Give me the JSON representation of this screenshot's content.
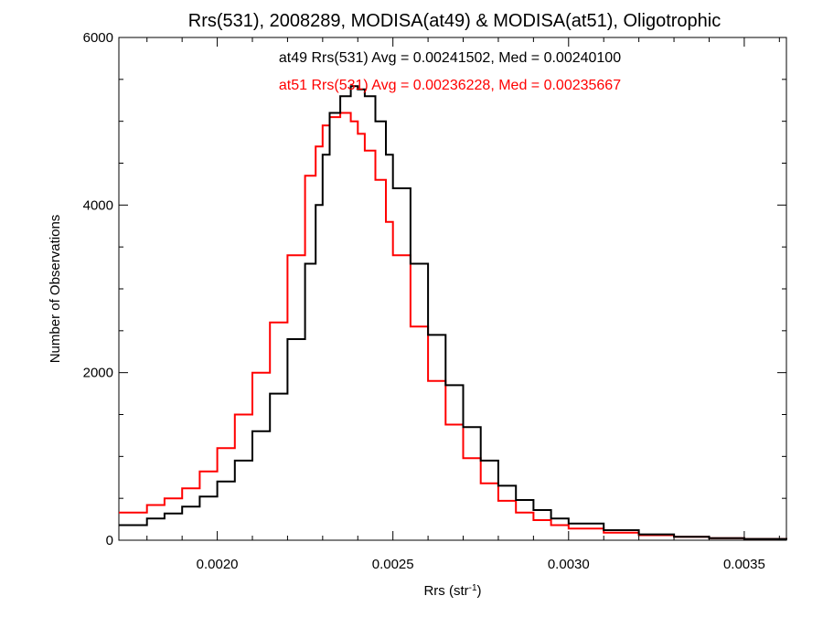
{
  "chart_data": {
    "type": "line",
    "title": "Rrs(531), 2008289, MODISA(at49) & MODISA(at51), Oligotrophic",
    "xlabel": "Rrs (str",
    "xlabel_superscript": "-1",
    "xlabel_suffix": ")",
    "ylabel": "Number of Observations",
    "xlim": [
      0.00172,
      0.00362
    ],
    "ylim": [
      0,
      6000
    ],
    "x_ticks": [
      0.002,
      0.0025,
      0.003,
      0.0035
    ],
    "x_tick_labels": [
      "0.0020",
      "0.0025",
      "0.0030",
      "0.0035"
    ],
    "y_ticks": [
      0,
      2000,
      4000,
      6000
    ],
    "y_tick_labels": [
      "0",
      "2000",
      "4000",
      "6000"
    ],
    "x_minor_step": 0.0001,
    "y_minor_step": 500,
    "grid": false,
    "series": [
      {
        "name": "at49",
        "color": "#000000",
        "annotation": "at49 Rrs(531) Avg = 0.00241502, Med = 0.00240100",
        "points": [
          [
            0.00172,
            180
          ],
          [
            0.0018,
            260
          ],
          [
            0.00185,
            320
          ],
          [
            0.0019,
            400
          ],
          [
            0.00195,
            520
          ],
          [
            0.002,
            700
          ],
          [
            0.00205,
            950
          ],
          [
            0.0021,
            1300
          ],
          [
            0.00215,
            1750
          ],
          [
            0.0022,
            2400
          ],
          [
            0.00225,
            3300
          ],
          [
            0.00228,
            4000
          ],
          [
            0.0023,
            4600
          ],
          [
            0.00232,
            5100
          ],
          [
            0.00235,
            5300
          ],
          [
            0.00238,
            5420
          ],
          [
            0.0024,
            5380
          ],
          [
            0.00242,
            5300
          ],
          [
            0.00245,
            5000
          ],
          [
            0.00248,
            4600
          ],
          [
            0.0025,
            4200
          ],
          [
            0.00255,
            3300
          ],
          [
            0.0026,
            2450
          ],
          [
            0.00265,
            1850
          ],
          [
            0.0027,
            1350
          ],
          [
            0.00275,
            950
          ],
          [
            0.0028,
            650
          ],
          [
            0.00285,
            480
          ],
          [
            0.0029,
            360
          ],
          [
            0.00295,
            260
          ],
          [
            0.003,
            200
          ],
          [
            0.0031,
            120
          ],
          [
            0.0032,
            70
          ],
          [
            0.0033,
            40
          ],
          [
            0.0034,
            25
          ],
          [
            0.0035,
            15
          ],
          [
            0.00362,
            5
          ]
        ]
      },
      {
        "name": "at51",
        "color": "#ff0000",
        "annotation": "at51 Rrs(531) Avg = 0.00236228, Med = 0.00235667",
        "points": [
          [
            0.00172,
            330
          ],
          [
            0.0018,
            420
          ],
          [
            0.00185,
            500
          ],
          [
            0.0019,
            620
          ],
          [
            0.00195,
            820
          ],
          [
            0.002,
            1100
          ],
          [
            0.00205,
            1500
          ],
          [
            0.0021,
            2000
          ],
          [
            0.00215,
            2600
          ],
          [
            0.0022,
            3400
          ],
          [
            0.00225,
            4350
          ],
          [
            0.00228,
            4700
          ],
          [
            0.0023,
            4950
          ],
          [
            0.00232,
            5050
          ],
          [
            0.00235,
            5100
          ],
          [
            0.00238,
            5000
          ],
          [
            0.0024,
            4850
          ],
          [
            0.00242,
            4650
          ],
          [
            0.00245,
            4300
          ],
          [
            0.00248,
            3800
          ],
          [
            0.0025,
            3400
          ],
          [
            0.00255,
            2550
          ],
          [
            0.0026,
            1900
          ],
          [
            0.00265,
            1380
          ],
          [
            0.0027,
            980
          ],
          [
            0.00275,
            680
          ],
          [
            0.0028,
            470
          ],
          [
            0.00285,
            330
          ],
          [
            0.0029,
            240
          ],
          [
            0.00295,
            180
          ],
          [
            0.003,
            140
          ],
          [
            0.0031,
            90
          ],
          [
            0.0032,
            60
          ],
          [
            0.0033,
            40
          ],
          [
            0.0034,
            25
          ],
          [
            0.0035,
            15
          ],
          [
            0.00362,
            5
          ]
        ]
      }
    ]
  }
}
